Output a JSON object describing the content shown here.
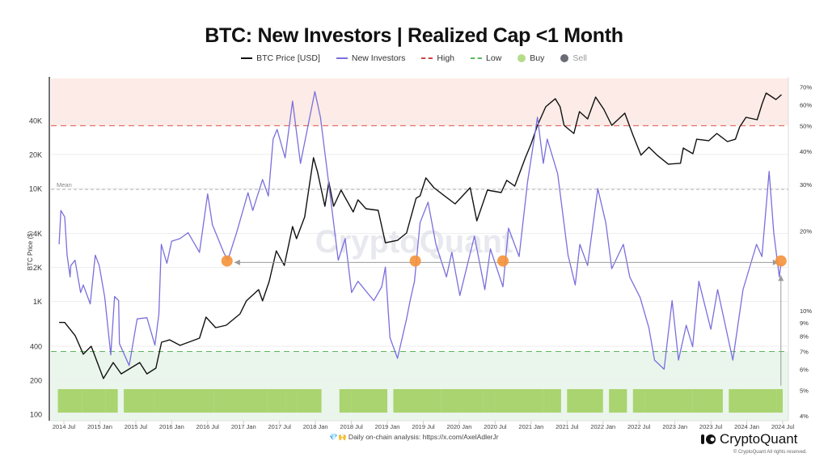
{
  "chart_data": {
    "type": "line",
    "title": "BTC: New Investors | Realized Cap <1 Month",
    "legend": {
      "placement": "top",
      "items": [
        {
          "label": "BTC Price [USD]",
          "kind": "line",
          "color": "#111111"
        },
        {
          "label": "New Investors",
          "kind": "line",
          "color": "#7b6fdc"
        },
        {
          "label": "High",
          "kind": "dash",
          "color": "#d9534f"
        },
        {
          "label": "Low",
          "kind": "dash",
          "color": "#5cb85c"
        },
        {
          "label": "Buy",
          "kind": "dot",
          "color": "#b5dc8a"
        },
        {
          "label": "Sell",
          "kind": "dot",
          "color": "#6b6b75",
          "disabled": true
        }
      ]
    },
    "left_axis": {
      "label": "BTC Price ($)",
      "scale": "log",
      "range": [
        100,
        90000
      ],
      "ticks": [
        "40K",
        "20K",
        "10K",
        "4K",
        "2K",
        "1K",
        "400",
        "200",
        "100"
      ],
      "tick_values": [
        40000,
        20000,
        10000,
        4000,
        2000,
        1000,
        400,
        200,
        100
      ]
    },
    "right_axis": {
      "scale": "log",
      "range": [
        4,
        72
      ],
      "ticks": [
        "70%",
        "60%",
        "50%",
        "40%",
        "30%",
        "20%",
        "10%",
        "9%",
        "8%",
        "7%",
        "6%",
        "5%",
        "4%"
      ],
      "tick_values": [
        70,
        60,
        50,
        40,
        30,
        20,
        10,
        9,
        8,
        7,
        6,
        5,
        4
      ]
    },
    "x_axis": {
      "ticks": [
        "2014 Jul",
        "2015 Jan",
        "2015 Jul",
        "2016 Jan",
        "2016 Jul",
        "2017 Jan",
        "2017 Jul",
        "2018 Jan",
        "2018 Jul",
        "2019 Jan",
        "2019 Jul",
        "2020 Jan",
        "2020 Jul",
        "2021 Jan",
        "2021 Jul",
        "2022 Jan",
        "2022 Jul",
        "2023 Jan",
        "2023 Jul",
        "2024 Jan",
        "2024 Jul"
      ]
    },
    "grid": true,
    "thresholds": {
      "high": 50,
      "low": 7,
      "mean": 28.7,
      "mean_label": "Mean"
    },
    "zones": {
      "high_color": "#fcebe6",
      "low_color": "#eaf5ec"
    },
    "series": [
      {
        "name": "BTC Price [USD]",
        "axis": "left",
        "color": "#111111",
        "points": [
          [
            "2014-06-07",
            650
          ],
          [
            "2014-07-05",
            650
          ],
          [
            "2014-08-28",
            495
          ],
          [
            "2014-10-08",
            340
          ],
          [
            "2014-11-18",
            400
          ],
          [
            "2015-01-19",
            207
          ],
          [
            "2015-03-08",
            287
          ],
          [
            "2015-04-18",
            228
          ],
          [
            "2015-07-21",
            287
          ],
          [
            "2015-08-27",
            228
          ],
          [
            "2015-10-12",
            256
          ],
          [
            "2015-11-10",
            434
          ],
          [
            "2015-12-21",
            456
          ],
          [
            "2016-02-13",
            407
          ],
          [
            "2016-05-20",
            472
          ],
          [
            "2016-06-23",
            724
          ],
          [
            "2016-08-11",
            585
          ],
          [
            "2016-10-04",
            614
          ],
          [
            "2016-12-13",
            774
          ],
          [
            "2017-01-15",
            1010
          ],
          [
            "2017-03-16",
            1270
          ],
          [
            "2017-04-06",
            1010
          ],
          [
            "2017-05-09",
            1500
          ],
          [
            "2017-06-15",
            2800
          ],
          [
            "2017-07-25",
            2080
          ],
          [
            "2017-09-06",
            4600
          ],
          [
            "2017-09-26",
            3590
          ],
          [
            "2017-11-07",
            5600
          ],
          [
            "2017-12-21",
            18700
          ],
          [
            "2018-01-11",
            14100
          ],
          [
            "2018-02-18",
            6950
          ],
          [
            "2018-03-08",
            11400
          ],
          [
            "2018-04-02",
            6950
          ],
          [
            "2018-05-09",
            9660
          ],
          [
            "2018-07-10",
            6190
          ],
          [
            "2018-08-04",
            7930
          ],
          [
            "2018-09-14",
            6610
          ],
          [
            "2018-11-15",
            6400
          ],
          [
            "2018-12-21",
            3300
          ],
          [
            "2019-02-22",
            3470
          ],
          [
            "2019-04-07",
            4030
          ],
          [
            "2019-05-25",
            8200
          ],
          [
            "2019-06-15",
            8600
          ],
          [
            "2019-07-14",
            12400
          ],
          [
            "2019-08-24",
            10150
          ],
          [
            "2019-10-17",
            8600
          ],
          [
            "2019-12-10",
            7300
          ],
          [
            "2020-02-26",
            10150
          ],
          [
            "2020-03-29",
            5160
          ],
          [
            "2020-05-22",
            9660
          ],
          [
            "2020-07-31",
            9200
          ],
          [
            "2020-08-29",
            11800
          ],
          [
            "2020-10-09",
            10500
          ],
          [
            "2020-12-02",
            18700
          ],
          [
            "2021-01-01",
            24800
          ],
          [
            "2021-02-03",
            36200
          ],
          [
            "2021-03-14",
            52900
          ],
          [
            "2021-05-02",
            62400
          ],
          [
            "2021-05-26",
            52900
          ],
          [
            "2021-06-16",
            36200
          ],
          [
            "2021-08-05",
            30700
          ],
          [
            "2021-09-03",
            47900
          ],
          [
            "2021-10-14",
            41300
          ],
          [
            "2021-11-24",
            64500
          ],
          [
            "2022-01-05",
            50300
          ],
          [
            "2022-02-15",
            36200
          ],
          [
            "2022-04-20",
            46400
          ],
          [
            "2022-06-01",
            29700
          ],
          [
            "2022-07-11",
            19700
          ],
          [
            "2022-08-21",
            23200
          ],
          [
            "2022-10-02",
            19700
          ],
          [
            "2022-11-28",
            16400
          ],
          [
            "2023-01-29",
            16700
          ],
          [
            "2023-02-13",
            22800
          ],
          [
            "2023-03-31",
            20300
          ],
          [
            "2023-04-20",
            27300
          ],
          [
            "2023-06-21",
            26500
          ],
          [
            "2023-08-01",
            30700
          ],
          [
            "2023-09-24",
            26000
          ],
          [
            "2023-11-04",
            27300
          ],
          [
            "2023-11-25",
            35000
          ],
          [
            "2023-12-27",
            42700
          ],
          [
            "2024-02-23",
            40600
          ],
          [
            "2024-03-18",
            56500
          ],
          [
            "2024-04-08",
            70000
          ],
          [
            "2024-05-27",
            61300
          ],
          [
            "2024-06-25",
            67700
          ]
        ]
      },
      {
        "name": "New Investors",
        "axis": "right",
        "color": "#7b6fdc",
        "points": [
          [
            "2014-06-07",
            17.8
          ],
          [
            "2014-06-16",
            23.9
          ],
          [
            "2014-07-05",
            22.6
          ],
          [
            "2014-07-17",
            16.2
          ],
          [
            "2014-08-02",
            13.4
          ],
          [
            "2014-08-06",
            14.8
          ],
          [
            "2014-08-27",
            15.5
          ],
          [
            "2014-09-25",
            11.7
          ],
          [
            "2014-10-08",
            12.5
          ],
          [
            "2014-11-13",
            10.6
          ],
          [
            "2014-12-08",
            16.2
          ],
          [
            "2014-12-28",
            14.8
          ],
          [
            "2015-01-26",
            11.2
          ],
          [
            "2015-02-26",
            6.8
          ],
          [
            "2015-03-15",
            11.3
          ],
          [
            "2015-04-05",
            10.9
          ],
          [
            "2015-04-09",
            7.5
          ],
          [
            "2015-05-28",
            6.2
          ],
          [
            "2015-07-08",
            9.3
          ],
          [
            "2015-08-27",
            9.4
          ],
          [
            "2015-10-07",
            7.4
          ],
          [
            "2015-10-27",
            9.7
          ],
          [
            "2015-11-09",
            17.8
          ],
          [
            "2015-12-07",
            15.1
          ],
          [
            "2016-01-01",
            18.3
          ],
          [
            "2016-02-12",
            18.7
          ],
          [
            "2016-03-23",
            19.7
          ],
          [
            "2016-05-20",
            16.6
          ],
          [
            "2016-07-01",
            27.6
          ],
          [
            "2016-07-25",
            21.1
          ],
          [
            "2016-09-21",
            16.6
          ],
          [
            "2016-10-12",
            15.5
          ],
          [
            "2016-11-26",
            19.7
          ],
          [
            "2017-01-23",
            27.9
          ],
          [
            "2017-02-17",
            23.9
          ],
          [
            "2017-04-06",
            31.3
          ],
          [
            "2017-05-05",
            27.1
          ],
          [
            "2017-05-29",
            44.5
          ],
          [
            "2017-06-19",
            48.4
          ],
          [
            "2017-07-29",
            37.8
          ],
          [
            "2017-09-06",
            61.9
          ],
          [
            "2017-10-16",
            36.0
          ],
          [
            "2017-12-28",
            67.3
          ],
          [
            "2018-01-26",
            53.8
          ],
          [
            "2018-03-08",
            30.0
          ],
          [
            "2018-04-25",
            15.5
          ],
          [
            "2018-05-30",
            18.7
          ],
          [
            "2018-07-02",
            11.7
          ],
          [
            "2018-08-04",
            12.9
          ],
          [
            "2018-10-23",
            10.9
          ],
          [
            "2018-12-03",
            12.3
          ],
          [
            "2018-12-21",
            14.6
          ],
          [
            "2019-01-14",
            7.9
          ],
          [
            "2019-02-22",
            6.6
          ],
          [
            "2019-04-07",
            9.3
          ],
          [
            "2019-04-25",
            10.9
          ],
          [
            "2019-05-17",
            12.9
          ],
          [
            "2019-06-15",
            21.5
          ],
          [
            "2019-07-25",
            25.7
          ],
          [
            "2019-09-04",
            17.8
          ],
          [
            "2019-10-27",
            13.4
          ],
          [
            "2019-11-24",
            16.6
          ],
          [
            "2020-01-04",
            11.4
          ],
          [
            "2020-03-17",
            19.1
          ],
          [
            "2020-05-09",
            12.0
          ],
          [
            "2020-06-07",
            17.1
          ],
          [
            "2020-08-10",
            12.3
          ],
          [
            "2020-09-08",
            20.5
          ],
          [
            "2020-10-31",
            16.0
          ],
          [
            "2020-12-13",
            30.6
          ],
          [
            "2021-02-03",
            53.8
          ],
          [
            "2021-03-02",
            36.0
          ],
          [
            "2021-03-22",
            44.5
          ],
          [
            "2021-05-14",
            32.9
          ],
          [
            "2021-07-06",
            16.2
          ],
          [
            "2021-08-12",
            12.5
          ],
          [
            "2021-09-05",
            17.8
          ],
          [
            "2021-10-14",
            14.8
          ],
          [
            "2021-12-05",
            28.9
          ],
          [
            "2022-01-15",
            21.5
          ],
          [
            "2022-02-15",
            14.4
          ],
          [
            "2022-04-13",
            17.8
          ],
          [
            "2022-05-15",
            13.4
          ],
          [
            "2022-07-07",
            11.2
          ],
          [
            "2022-08-21",
            8.6
          ],
          [
            "2022-09-19",
            6.5
          ],
          [
            "2022-11-07",
            6.0
          ],
          [
            "2022-12-17",
            10.9
          ],
          [
            "2023-01-19",
            6.5
          ],
          [
            "2023-02-28",
            8.8
          ],
          [
            "2023-03-30",
            7.3
          ],
          [
            "2023-05-01",
            12.9
          ],
          [
            "2023-07-01",
            8.5
          ],
          [
            "2023-08-05",
            12.0
          ],
          [
            "2023-10-21",
            6.5
          ],
          [
            "2023-12-12",
            12.0
          ],
          [
            "2024-02-20",
            17.8
          ],
          [
            "2024-03-17",
            16.0
          ],
          [
            "2024-04-23",
            33.6
          ],
          [
            "2024-05-16",
            19.7
          ],
          [
            "2024-06-14",
            13.4
          ],
          [
            "2024-06-22",
            15.1
          ]
        ]
      }
    ],
    "buy_signal_periods": [
      [
        "2014-06",
        "2014-07"
      ],
      [
        "2014-07",
        "2014-09"
      ],
      [
        "2014-10",
        "2014-12"
      ],
      [
        "2014-12",
        "2015-01"
      ],
      [
        "2015-02",
        "2015-03"
      ],
      [
        "2015-05",
        "2015-09"
      ],
      [
        "2015-10",
        "2015-12"
      ],
      [
        "2015-12",
        "2016-05"
      ],
      [
        "2016-05",
        "2016-07"
      ],
      [
        "2016-08",
        "2016-09"
      ],
      [
        "2016-10",
        "2017-02"
      ],
      [
        "2017-02",
        "2017-04"
      ],
      [
        "2017-05",
        "2017-07"
      ],
      [
        "2017-08",
        "2017-09"
      ],
      [
        "2017-10",
        "2018-01"
      ],
      [
        "2018-05",
        "2018-06"
      ],
      [
        "2018-07",
        "2018-12"
      ],
      [
        "2019-02",
        "2019-09"
      ],
      [
        "2019-10",
        "2019-12"
      ],
      [
        "2020-01",
        "2020-04"
      ],
      [
        "2020-05",
        "2020-06"
      ],
      [
        "2020-07",
        "2021-02"
      ],
      [
        "2021-03",
        "2021-03"
      ],
      [
        "2021-04",
        "2021-05"
      ],
      [
        "2021-07",
        "2021-12"
      ],
      [
        "2022-02",
        "2022-04"
      ],
      [
        "2022-06",
        "2022-07"
      ],
      [
        "2022-08",
        "2023-01"
      ],
      [
        "2023-02",
        "2023-03"
      ],
      [
        "2023-04",
        "2023-05"
      ],
      [
        "2023-05",
        "2023-08"
      ],
      [
        "2023-10",
        "2023-12"
      ],
      [
        "2023-12",
        "2024-05"
      ],
      [
        "2024-06",
        "2024-06"
      ]
    ],
    "annotations": {
      "highlight_points": [
        [
          "2016-10-08",
          15.4
        ],
        [
          "2019-05-21",
          15.4
        ],
        [
          "2020-08-10",
          15.4
        ],
        [
          "2024-06-22",
          15.4
        ]
      ],
      "highlight_color": "#f5913a",
      "horizontal_arrow": {
        "from": "2024-06-10",
        "to": "2016-11-15",
        "value": 15.2
      },
      "vertical_arrow": {
        "date": "2024-06-22",
        "from": 5.2,
        "to": 13.6
      },
      "arrow_color": "#9a9a9a"
    }
  },
  "watermark": "CryptoQuant",
  "footer": {
    "link_text": "💎🙌 Daily on-chain analysis: https://x.com/AxelAdlerJr",
    "logo_text": "CryptoQuant",
    "copyright": "© CryptoQuant All rights reserved."
  }
}
